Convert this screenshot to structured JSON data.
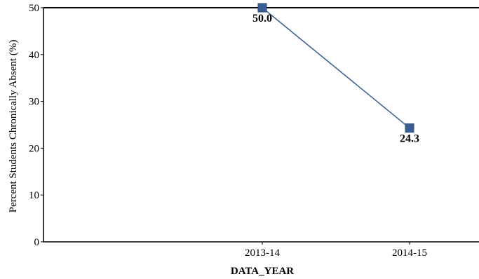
{
  "chart_data": {
    "type": "line",
    "title": "",
    "xlabel": "DATA_YEAR",
    "ylabel": "Percent Students Chronically Absent (%)",
    "categories": [
      "2013-14",
      "2014-15"
    ],
    "series": [
      {
        "values": [
          50.0,
          24.3
        ],
        "data_labels": [
          "50.0",
          "24.3"
        ],
        "color": "#3a5f95"
      }
    ],
    "ylim": [
      0,
      50
    ],
    "yticks": [
      0,
      10,
      20,
      30,
      40,
      50
    ],
    "grid": false,
    "legend": "none",
    "marker": "square"
  }
}
